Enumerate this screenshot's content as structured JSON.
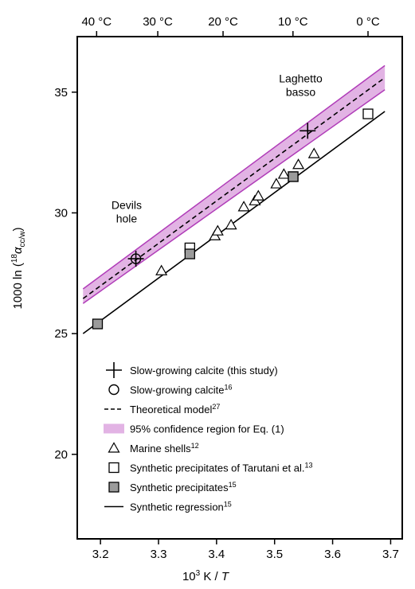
{
  "chart_data": {
    "type": "scatter",
    "xlabel_base": "10",
    "xlabel_sup": "3",
    "xlabel_rest": " K / ",
    "xlabel_var": "T",
    "ylabel_main": "1000 ln (",
    "ylabel_sup": "18",
    "ylabel_alpha": "α",
    "ylabel_sub": "cc/w",
    "ylabel_close": ")",
    "xlim": [
      3.16,
      3.72
    ],
    "ylim": [
      16.5,
      37.3
    ],
    "x_ticks": [
      {
        "value": 3.2,
        "label": "3.2"
      },
      {
        "value": 3.3,
        "label": "3.3"
      },
      {
        "value": 3.4,
        "label": "3.4"
      },
      {
        "value": 3.5,
        "label": "3.5"
      },
      {
        "value": 3.6,
        "label": "3.6"
      },
      {
        "value": 3.7,
        "label": "3.7"
      }
    ],
    "y_ticks": [
      {
        "value": 20,
        "label": "20"
      },
      {
        "value": 25,
        "label": "25"
      },
      {
        "value": 30,
        "label": "30"
      },
      {
        "value": 35,
        "label": "35"
      }
    ],
    "top_ticks": [
      {
        "celsius": 40,
        "label": "40 °C"
      },
      {
        "celsius": 30,
        "label": "30 °C"
      },
      {
        "celsius": 20,
        "label": "20 °C"
      },
      {
        "celsius": 10,
        "label": "10 °C"
      },
      {
        "celsius": 0,
        "label": "0 °C"
      }
    ],
    "confidence_region": {
      "x": [
        3.17,
        3.69
      ],
      "lower": [
        26.25,
        35.1
      ],
      "upper": [
        26.85,
        36.1
      ],
      "color": "#b03cb8",
      "fill": "#e2b3e4"
    },
    "theoretical_model": {
      "x": [
        3.17,
        3.69
      ],
      "y": [
        26.45,
        35.6
      ]
    },
    "synthetic_regression": {
      "x": [
        3.17,
        3.69
      ],
      "y": [
        25.0,
        34.2
      ]
    },
    "series": [
      {
        "name": "Slow-growing calcite (this study)",
        "marker": "plus",
        "points": [
          [
            3.261,
            28.1
          ],
          [
            3.557,
            33.4
          ]
        ]
      },
      {
        "name": "Slow-growing calcite",
        "marker": "circle",
        "points": [
          [
            3.261,
            28.1
          ]
        ]
      },
      {
        "name": "Marine shells",
        "marker": "triangle",
        "points": [
          [
            3.305,
            27.6
          ],
          [
            3.397,
            29.05
          ],
          [
            3.402,
            29.25
          ],
          [
            3.425,
            29.5
          ],
          [
            3.447,
            30.25
          ],
          [
            3.466,
            30.5
          ],
          [
            3.472,
            30.7
          ],
          [
            3.503,
            31.2
          ],
          [
            3.516,
            31.6
          ],
          [
            3.541,
            32.0
          ],
          [
            3.568,
            32.45
          ]
        ]
      },
      {
        "name": "Synthetic precipitates of Tarutani et al.",
        "marker": "square",
        "points": [
          [
            3.354,
            28.55
          ],
          [
            3.532,
            31.5
          ],
          [
            3.661,
            34.1
          ]
        ]
      },
      {
        "name": "Synthetic precipitates",
        "marker": "square-filled",
        "points": [
          [
            3.195,
            25.4
          ],
          [
            3.354,
            28.3
          ],
          [
            3.532,
            31.5
          ]
        ]
      }
    ],
    "annotations": [
      {
        "lines": [
          "Devils",
          "hole"
        ],
        "x": 3.245,
        "y": 29.6
      },
      {
        "lines": [
          "Laghetto",
          "basso"
        ],
        "x": 3.545,
        "y": 34.85
      }
    ],
    "legend": [
      {
        "symbol": "plus",
        "label": "Slow-growing calcite (this study)",
        "sup": ""
      },
      {
        "symbol": "circle",
        "label": "Slow-growing calcite",
        "sup": "16"
      },
      {
        "symbol": "dashed-line",
        "label": "Theoretical model",
        "sup": "27"
      },
      {
        "symbol": "band",
        "label": "95% confidence region for Eq. (1)",
        "sup": ""
      },
      {
        "symbol": "triangle",
        "label": "Marine shells",
        "sup": "12"
      },
      {
        "symbol": "square",
        "label": "Synthetic precipitates of Tarutani et al.",
        "sup": "13"
      },
      {
        "symbol": "square-filled",
        "label": "Synthetic precipitates",
        "sup": "15"
      },
      {
        "symbol": "solid-line",
        "label": "Synthetic regression",
        "sup": "15"
      }
    ],
    "legend_position": "bottom-left",
    "grid": false,
    "colors": {
      "filled_marker": "#9b9b9b"
    }
  }
}
